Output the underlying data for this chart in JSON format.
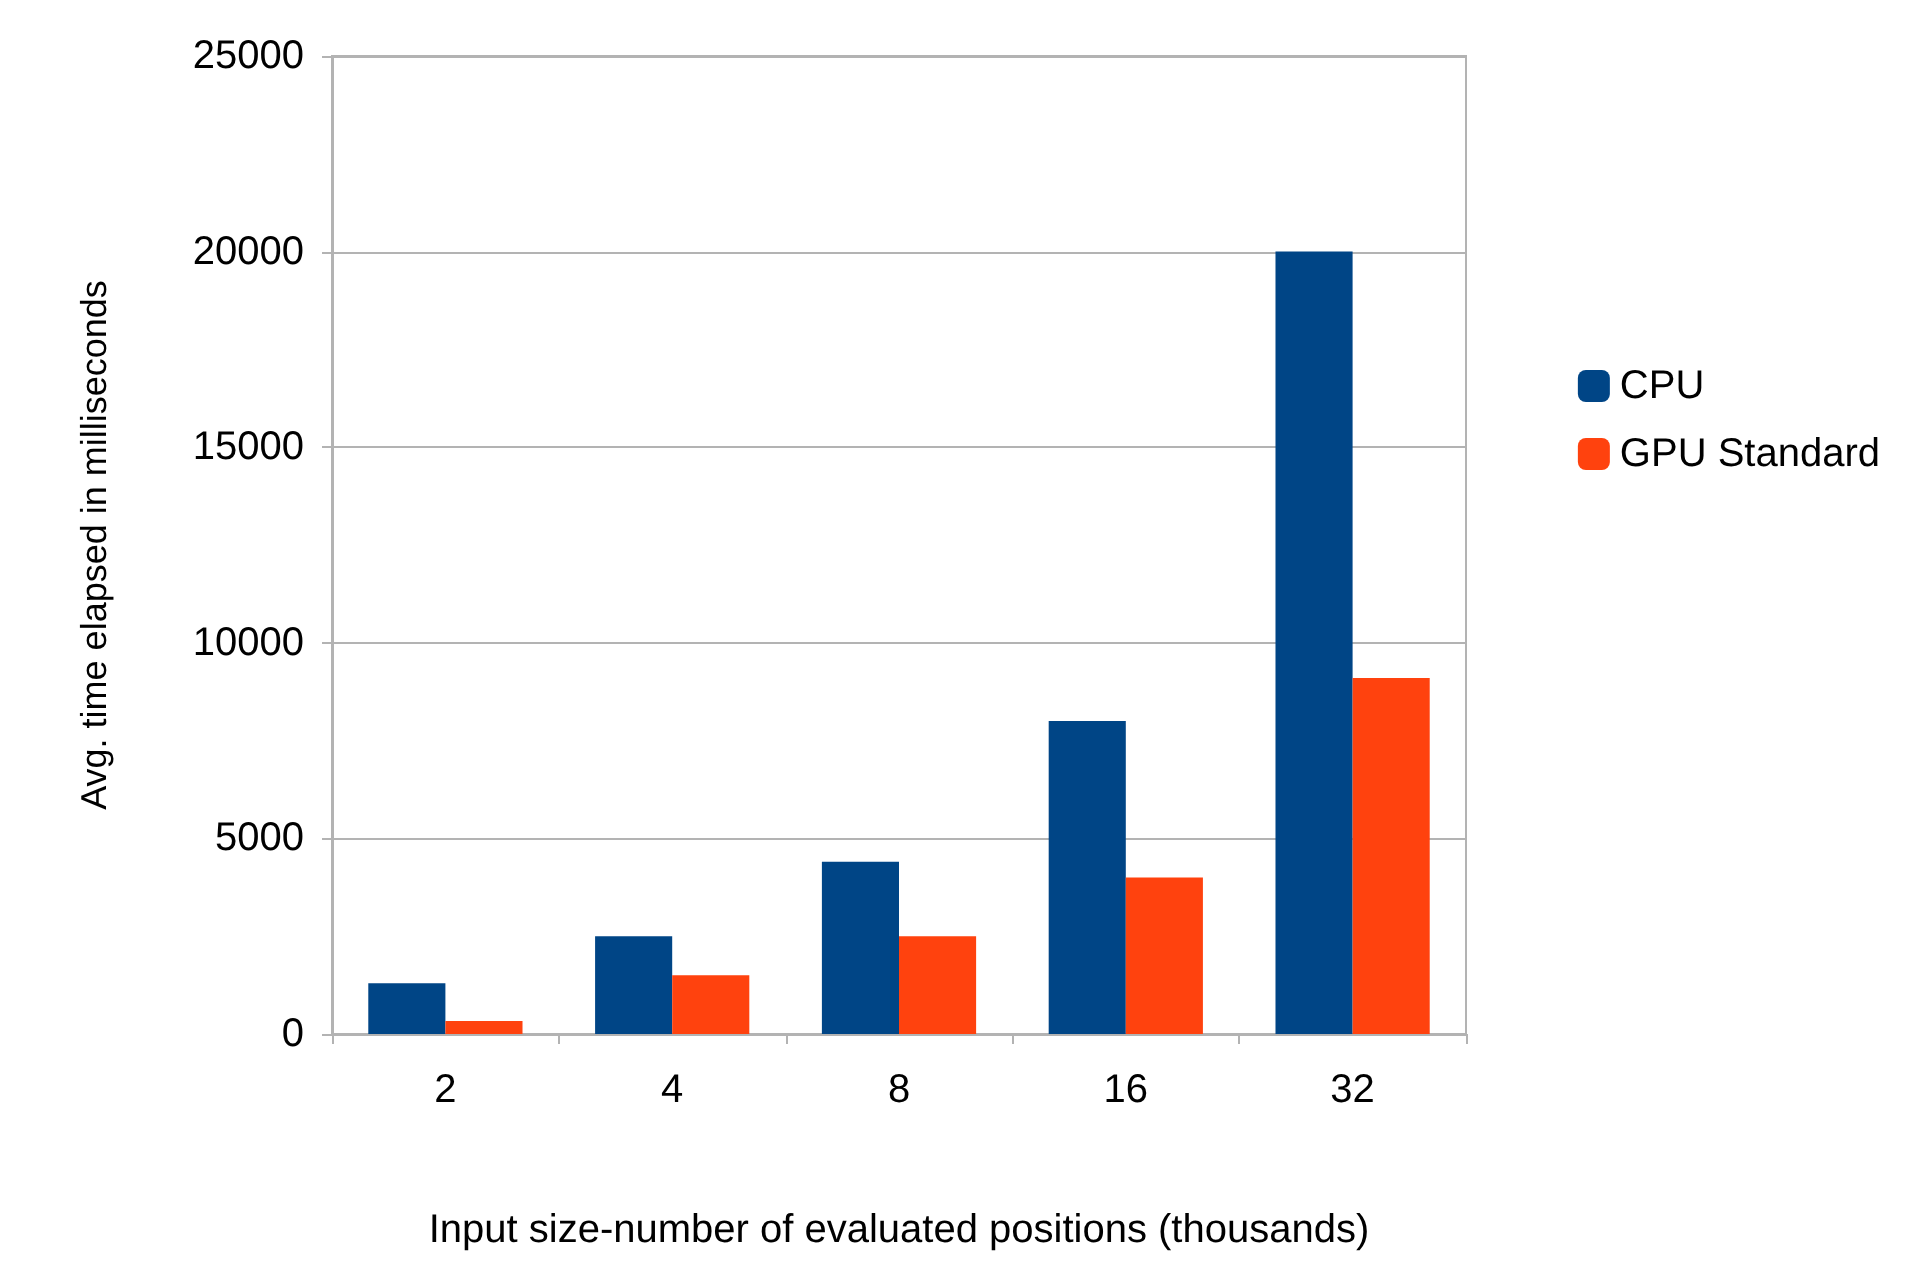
{
  "chart_data": {
    "type": "bar",
    "xlabel": "Input size-number of evaluated positions (thousands)",
    "ylabel": "Avg. time elapsed in milliseconds",
    "categories": [
      "2",
      "4",
      "8",
      "16",
      "32"
    ],
    "series": [
      {
        "name": "CPU",
        "color": "#004586",
        "values": [
          1300,
          2500,
          4400,
          8000,
          20000
        ]
      },
      {
        "name": "GPU Standard",
        "color": "#ff420e",
        "values": [
          330,
          1500,
          2500,
          4000,
          9100
        ]
      }
    ],
    "ylim": [
      0,
      25000
    ],
    "yticks": [
      0,
      5000,
      10000,
      15000,
      20000,
      25000
    ],
    "grid": "y",
    "legend": "right"
  }
}
